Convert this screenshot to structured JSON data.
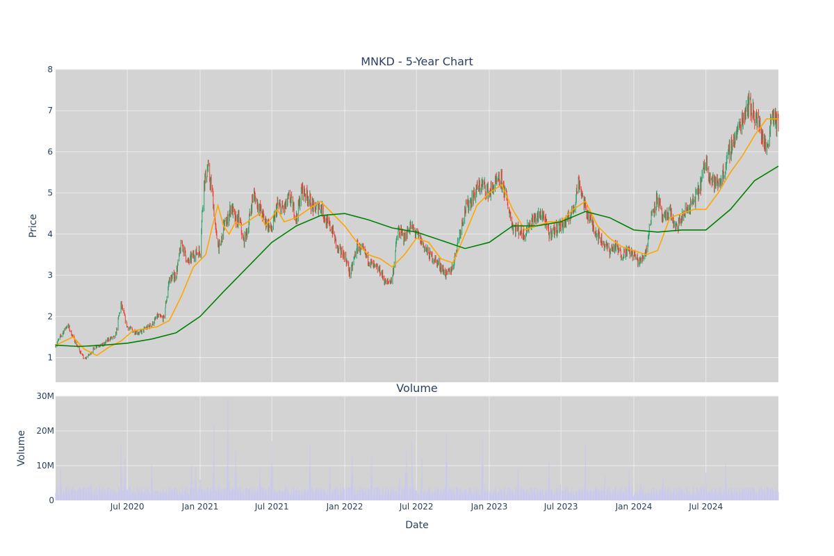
{
  "colors": {
    "plot_bg": "#d3d3d3",
    "grid": "#ebebeb",
    "up": "#26a269",
    "down": "#ef3b2c",
    "ma_short": "#ffa500",
    "ma_long": "#008000",
    "volume": "#c8c8f0",
    "text": "#2a3f5f"
  },
  "chart_data": [
    {
      "type": "candlestick",
      "title": "MNKD - 5-Year Chart",
      "ylabel": "Price",
      "xlabel": "",
      "xlim": [
        "2020-01-02",
        "2024-12-31"
      ],
      "ylim": [
        0.4,
        8
      ],
      "y_ticks": [
        1,
        2,
        3,
        4,
        5,
        6,
        7,
        8
      ],
      "grid": true,
      "series": [
        {
          "kind": "price-line",
          "x": [
            "2020-01-02",
            "2020-02-01",
            "2020-02-15",
            "2020-03-01",
            "2020-03-15",
            "2020-03-25",
            "2020-04-15",
            "2020-05-01",
            "2020-05-15",
            "2020-06-01",
            "2020-06-15",
            "2020-07-01",
            "2020-07-15",
            "2020-08-01",
            "2020-08-15",
            "2020-09-01",
            "2020-09-15",
            "2020-10-01",
            "2020-10-15",
            "2020-11-01",
            "2020-11-15",
            "2020-12-01",
            "2020-12-15",
            "2021-01-01",
            "2021-01-10",
            "2021-01-20",
            "2021-02-01",
            "2021-02-10",
            "2021-02-20",
            "2021-03-01",
            "2021-03-10",
            "2021-03-20",
            "2021-04-01",
            "2021-04-10",
            "2021-04-20",
            "2021-05-01",
            "2021-05-15",
            "2021-06-01",
            "2021-06-15",
            "2021-07-01",
            "2021-07-15",
            "2021-08-01",
            "2021-08-15",
            "2021-09-01",
            "2021-09-15",
            "2021-10-01",
            "2021-10-15",
            "2021-11-01",
            "2021-11-15",
            "2021-12-01",
            "2021-12-15",
            "2022-01-01",
            "2022-01-15",
            "2022-02-01",
            "2022-02-15",
            "2022-03-01",
            "2022-03-15",
            "2022-04-01",
            "2022-04-15",
            "2022-05-01",
            "2022-05-15",
            "2022-06-01",
            "2022-06-15",
            "2022-07-01",
            "2022-07-15",
            "2022-08-01",
            "2022-08-15",
            "2022-09-01",
            "2022-09-15",
            "2022-10-01",
            "2022-10-15",
            "2022-11-01",
            "2022-11-15",
            "2022-12-01",
            "2022-12-15",
            "2023-01-01",
            "2023-01-15",
            "2023-02-01",
            "2023-02-15",
            "2023-03-01",
            "2023-03-15",
            "2023-04-01",
            "2023-04-15",
            "2023-05-01",
            "2023-05-15",
            "2023-06-01",
            "2023-06-15",
            "2023-07-01",
            "2023-07-15",
            "2023-08-01",
            "2023-08-15",
            "2023-09-01",
            "2023-09-15",
            "2023-10-01",
            "2023-10-15",
            "2023-11-01",
            "2023-11-15",
            "2023-12-01",
            "2023-12-15",
            "2024-01-01",
            "2024-01-15",
            "2024-02-01",
            "2024-02-15",
            "2024-03-01",
            "2024-03-15",
            "2024-04-01",
            "2024-04-15",
            "2024-05-01",
            "2024-05-15",
            "2024-06-01",
            "2024-06-15",
            "2024-07-01",
            "2024-07-15",
            "2024-08-01",
            "2024-08-15",
            "2024-09-01",
            "2024-09-15",
            "2024-10-01",
            "2024-10-15",
            "2024-11-01",
            "2024-11-15",
            "2024-12-01",
            "2024-12-15",
            "2024-12-31"
          ],
          "y": [
            1.3,
            1.8,
            1.5,
            1.2,
            0.95,
            1.05,
            1.3,
            1.3,
            1.45,
            1.5,
            2.3,
            1.75,
            1.65,
            1.6,
            1.7,
            1.8,
            2.0,
            1.95,
            2.9,
            3.0,
            3.8,
            3.3,
            3.5,
            3.6,
            5.2,
            5.6,
            5.0,
            4.0,
            3.6,
            4.2,
            4.3,
            4.7,
            4.3,
            4.4,
            3.8,
            4.1,
            5.0,
            4.6,
            4.3,
            4.1,
            4.7,
            4.6,
            4.9,
            4.4,
            5.1,
            4.9,
            4.6,
            4.7,
            4.3,
            4.1,
            3.6,
            3.5,
            3.0,
            3.7,
            3.6,
            3.4,
            3.2,
            3.1,
            2.8,
            2.9,
            4.1,
            3.9,
            4.2,
            4.0,
            3.8,
            3.5,
            3.4,
            3.2,
            3.0,
            3.2,
            3.9,
            4.6,
            4.8,
            5.1,
            5.2,
            5.0,
            5.2,
            5.3,
            4.8,
            4.2,
            4.1,
            4.0,
            4.3,
            4.4,
            4.5,
            4.0,
            4.1,
            4.2,
            4.3,
            4.6,
            5.3,
            4.6,
            4.3,
            4.0,
            3.8,
            3.6,
            3.7,
            3.5,
            3.6,
            3.5,
            3.3,
            3.6,
            4.5,
            4.9,
            4.3,
            4.6,
            4.1,
            4.4,
            4.6,
            4.8,
            5.1,
            5.8,
            5.3,
            5.2,
            5.5,
            6.1,
            6.4,
            6.8,
            7.2,
            6.9,
            6.6,
            6.0,
            7.0,
            6.6
          ]
        },
        {
          "kind": "ma-short",
          "x": [
            "2020-01-02",
            "2020-02-15",
            "2020-03-15",
            "2020-04-15",
            "2020-05-15",
            "2020-06-15",
            "2020-07-15",
            "2020-08-15",
            "2020-09-15",
            "2020-10-15",
            "2020-11-15",
            "2020-12-15",
            "2021-01-15",
            "2021-02-01",
            "2021-02-15",
            "2021-03-01",
            "2021-03-15",
            "2021-04-01",
            "2021-04-15",
            "2021-05-01",
            "2021-05-15",
            "2021-06-01",
            "2021-06-15",
            "2021-07-01",
            "2021-07-15",
            "2021-08-01",
            "2021-09-01",
            "2021-10-01",
            "2021-11-01",
            "2021-12-01",
            "2022-01-01",
            "2022-02-01",
            "2022-03-01",
            "2022-04-01",
            "2022-05-01",
            "2022-06-01",
            "2022-07-01",
            "2022-08-01",
            "2022-09-01",
            "2022-10-01",
            "2022-11-01",
            "2022-12-01",
            "2023-01-01",
            "2023-02-01",
            "2023-03-01",
            "2023-04-01",
            "2023-05-01",
            "2023-06-01",
            "2023-07-01",
            "2023-08-01",
            "2023-09-01",
            "2023-10-01",
            "2023-11-01",
            "2023-12-01",
            "2024-01-01",
            "2024-02-01",
            "2024-03-01",
            "2024-04-01",
            "2024-05-01",
            "2024-06-01",
            "2024-07-01",
            "2024-08-01",
            "2024-09-01",
            "2024-10-01",
            "2024-11-01",
            "2024-12-01",
            "2024-12-31"
          ],
          "y": [
            1.3,
            1.5,
            1.2,
            1.05,
            1.25,
            1.4,
            1.65,
            1.7,
            1.75,
            1.9,
            2.5,
            3.2,
            3.5,
            4.2,
            4.7,
            4.2,
            4.0,
            4.3,
            4.2,
            4.3,
            4.4,
            4.5,
            4.2,
            4.4,
            4.6,
            4.3,
            4.4,
            4.6,
            4.8,
            4.5,
            4.2,
            3.8,
            3.5,
            3.4,
            3.2,
            3.5,
            3.9,
            3.8,
            3.4,
            3.3,
            4.0,
            4.7,
            5.0,
            5.2,
            4.6,
            4.1,
            4.2,
            4.3,
            4.3,
            4.6,
            4.8,
            4.2,
            3.9,
            3.7,
            3.6,
            3.5,
            3.6,
            4.4,
            4.5,
            4.6,
            4.6,
            5.0,
            5.5,
            5.9,
            6.4,
            6.8,
            6.8
          ]
        },
        {
          "kind": "ma-long",
          "x": [
            "2020-01-02",
            "2020-03-01",
            "2020-05-01",
            "2020-07-01",
            "2020-09-01",
            "2020-11-01",
            "2021-01-01",
            "2021-03-01",
            "2021-05-01",
            "2021-07-01",
            "2021-09-01",
            "2021-11-01",
            "2022-01-01",
            "2022-03-01",
            "2022-05-01",
            "2022-07-01",
            "2022-09-01",
            "2022-11-01",
            "2023-01-01",
            "2023-03-01",
            "2023-05-01",
            "2023-07-01",
            "2023-09-01",
            "2023-11-01",
            "2024-01-01",
            "2024-03-01",
            "2024-05-01",
            "2024-07-01",
            "2024-09-01",
            "2024-11-01",
            "2024-12-31"
          ],
          "y": [
            1.3,
            1.27,
            1.3,
            1.35,
            1.45,
            1.6,
            2.0,
            2.6,
            3.2,
            3.8,
            4.2,
            4.45,
            4.5,
            4.35,
            4.15,
            4.05,
            3.85,
            3.65,
            3.8,
            4.2,
            4.2,
            4.3,
            4.55,
            4.4,
            4.1,
            4.05,
            4.1,
            4.1,
            4.6,
            5.3,
            5.65
          ]
        }
      ]
    },
    {
      "type": "bar",
      "title": "Volume",
      "ylabel": "Volume",
      "xlabel": "Date",
      "ylim": [
        0,
        30000000
      ],
      "y_tick_labels": [
        "0",
        "10M",
        "20M",
        "30M"
      ],
      "x_tick_labels": [
        "Jul 2020",
        "Jan 2021",
        "Jul 2021",
        "Jan 2022",
        "Jul 2022",
        "Jan 2023",
        "Jul 2023",
        "Jan 2024",
        "Jul 2024"
      ],
      "x_tick_dates": [
        "2020-07-01",
        "2021-01-01",
        "2021-07-01",
        "2022-01-01",
        "2022-07-01",
        "2023-01-01",
        "2023-07-01",
        "2024-01-01",
        "2024-07-01"
      ],
      "grid": true,
      "series": [
        {
          "kind": "volume-peaks",
          "x": [
            "2020-01-15",
            "2020-03-01",
            "2020-04-01",
            "2020-05-15",
            "2020-06-15",
            "2020-06-25",
            "2020-09-01",
            "2020-12-10",
            "2020-12-20",
            "2021-01-01",
            "2021-02-05",
            "2021-02-20",
            "2021-03-12",
            "2021-04-01",
            "2021-06-01",
            "2021-07-01",
            "2021-10-05",
            "2021-11-25",
            "2022-01-20",
            "2022-03-10",
            "2022-05-20",
            "2022-06-05",
            "2022-06-20",
            "2022-07-15",
            "2022-09-15",
            "2022-12-15",
            "2023-03-15",
            "2023-06-01",
            "2023-07-01",
            "2023-09-01",
            "2023-10-20",
            "2023-12-20",
            "2024-01-20",
            "2024-03-15",
            "2024-07-01",
            "2024-08-20",
            "2024-12-15"
          ],
          "y": [
            9000000,
            5500000,
            5000000,
            3000000,
            16000000,
            12000000,
            10000000,
            10000000,
            16500000,
            6000000,
            22000000,
            7500000,
            29500000,
            14000000,
            9000000,
            17000000,
            16000000,
            9000000,
            13000000,
            12500000,
            6500000,
            25000000,
            17000000,
            12000000,
            19000000,
            18000000,
            9000000,
            11000000,
            8000000,
            16500000,
            7000000,
            9000000,
            8500000,
            7000000,
            8000000,
            10500000,
            6000000
          ]
        }
      ]
    }
  ]
}
